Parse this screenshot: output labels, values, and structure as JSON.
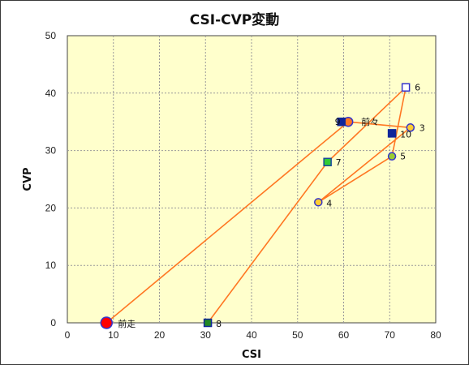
{
  "chart_data": {
    "type": "scatter",
    "title": "CSI-CVP変動",
    "xlabel": "CSI",
    "ylabel": "CVP",
    "xlim": [
      0,
      80
    ],
    "ylim": [
      0,
      50
    ],
    "x_ticks": [
      0,
      10,
      20,
      30,
      40,
      50,
      60,
      70,
      80
    ],
    "y_ticks": [
      0,
      10,
      20,
      30,
      40,
      50
    ],
    "grid": true,
    "colors": {
      "plot_bg": "#ffffcc",
      "grid": "#999999",
      "line": "#ff7722",
      "navy": "#10269a"
    },
    "connection_order": [
      "前走",
      "前々",
      "3",
      "4",
      "5",
      "6",
      "7",
      "8"
    ],
    "points": [
      {
        "label": "前走",
        "x": 8.5,
        "y": 0,
        "marker": "circle",
        "size": "large",
        "fill": "#ff0000",
        "stroke": "#3333cc"
      },
      {
        "label": "前々",
        "x": 61,
        "y": 35,
        "marker": "circle",
        "size": "medium",
        "fill": "#ff7722",
        "stroke": "#3333cc"
      },
      {
        "label": "3",
        "x": 74.5,
        "y": 34,
        "marker": "circle",
        "size": "small",
        "fill": "#ffcc33",
        "stroke": "#3333cc"
      },
      {
        "label": "4",
        "x": 54.5,
        "y": 21,
        "marker": "circle",
        "size": "small",
        "fill": "#ffcc33",
        "stroke": "#3333cc"
      },
      {
        "label": "5",
        "x": 70.5,
        "y": 29,
        "marker": "circle",
        "size": "small",
        "fill": "#99cc33",
        "stroke": "#3333cc"
      },
      {
        "label": "6",
        "x": 73.5,
        "y": 41,
        "marker": "square",
        "size": "small",
        "fill": "#ffffff",
        "stroke": "#3333cc"
      },
      {
        "label": "7",
        "x": 56.5,
        "y": 28,
        "marker": "square",
        "size": "small",
        "fill": "#33cc33",
        "stroke": "#1a4a9a"
      },
      {
        "label": "8",
        "x": 30.5,
        "y": 0,
        "marker": "square",
        "size": "small",
        "fill": "#228822",
        "stroke": "#10269a"
      },
      {
        "label": "9",
        "x": 59.5,
        "y": 35,
        "marker": "square",
        "size": "small",
        "fill": "#10269a",
        "stroke": "#10269a"
      },
      {
        "label": "10",
        "x": 70.5,
        "y": 33,
        "marker": "square",
        "size": "small",
        "fill": "#10269a",
        "stroke": "#10269a"
      }
    ]
  }
}
